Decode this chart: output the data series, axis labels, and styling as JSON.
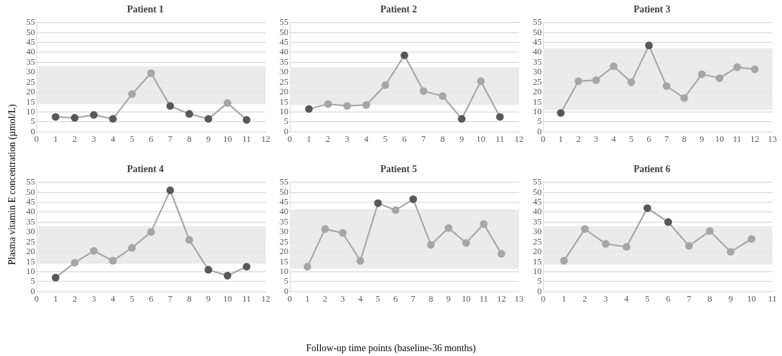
{
  "chart_data": [
    {
      "type": "line",
      "title": "Patient 1",
      "ylabel": "Plasma vitamin E concentration (µmol/L)",
      "x": [
        1,
        2,
        3,
        4,
        5,
        6,
        7,
        8,
        9,
        10,
        11
      ],
      "series": [
        {
          "color": "#a6a6a6",
          "values": [
            7.5,
            7,
            8.5,
            6.5,
            19,
            29.5,
            13,
            9,
            6.5,
            14.5,
            6
          ],
          "colors": [
            "#595959",
            "#595959",
            "#595959",
            "#595959",
            "#a6a6a6",
            "#a6a6a6",
            "#595959",
            "#595959",
            "#595959",
            "#a6a6a6",
            "#595959"
          ]
        }
      ],
      "xlim": [
        0,
        12
      ],
      "xticks": [
        0,
        1,
        2,
        3,
        4,
        5,
        6,
        7,
        8,
        9,
        10,
        11,
        12
      ],
      "ylim": [
        0,
        55
      ],
      "yticks": [
        0,
        5,
        10,
        15,
        20,
        25,
        30,
        35,
        40,
        45,
        50,
        55
      ],
      "grid": "y",
      "marker": "circle",
      "legend": false,
      "bands": [
        {
          "axis": "y",
          "from": 14,
          "to": 33,
          "color": "#e8e8e8"
        }
      ]
    },
    {
      "type": "line",
      "title": "Patient 2",
      "x": [
        1,
        2,
        3,
        4,
        5,
        6,
        7,
        8,
        9,
        10,
        11
      ],
      "series": [
        {
          "color": "#a6a6a6",
          "values": [
            11.5,
            14,
            13,
            13.5,
            23.5,
            38.5,
            20.5,
            18,
            6.5,
            25.5,
            7.5
          ],
          "colors": [
            "#595959",
            "#a6a6a6",
            "#a6a6a6",
            "#a6a6a6",
            "#a6a6a6",
            "#595959",
            "#a6a6a6",
            "#a6a6a6",
            "#595959",
            "#a6a6a6",
            "#595959"
          ]
        }
      ],
      "xlim": [
        0,
        12
      ],
      "xticks": [
        0,
        1,
        2,
        3,
        4,
        5,
        6,
        7,
        8,
        9,
        10,
        11,
        12
      ],
      "ylim": [
        0,
        55
      ],
      "yticks": [
        0,
        5,
        10,
        15,
        20,
        25,
        30,
        35,
        40,
        45,
        50,
        55
      ],
      "grid": "y",
      "marker": "circle",
      "legend": false,
      "bands": [
        {
          "axis": "y",
          "from": 13.5,
          "to": 32.5,
          "color": "#e8e8e8"
        }
      ]
    },
    {
      "type": "line",
      "title": "Patient 3",
      "x": [
        1,
        2,
        3,
        4,
        5,
        6,
        7,
        8,
        9,
        10,
        11,
        12
      ],
      "series": [
        {
          "color": "#a6a6a6",
          "values": [
            9.5,
            25.5,
            26,
            33,
            25,
            43.5,
            23,
            17,
            29,
            27,
            32.5,
            31.5
          ],
          "colors": [
            "#595959",
            "#a6a6a6",
            "#a6a6a6",
            "#a6a6a6",
            "#a6a6a6",
            "#595959",
            "#a6a6a6",
            "#a6a6a6",
            "#a6a6a6",
            "#a6a6a6",
            "#a6a6a6",
            "#a6a6a6"
          ]
        }
      ],
      "xlim": [
        0,
        13
      ],
      "xticks": [
        0,
        1,
        2,
        3,
        4,
        5,
        6,
        7,
        8,
        9,
        10,
        11,
        12,
        13
      ],
      "ylim": [
        0,
        55
      ],
      "yticks": [
        0,
        5,
        10,
        15,
        20,
        25,
        30,
        35,
        40,
        45,
        50,
        55
      ],
      "grid": "y",
      "marker": "circle",
      "legend": false,
      "bands": [
        {
          "axis": "y",
          "from": 11,
          "to": 42,
          "color": "#e8e8e8"
        }
      ]
    },
    {
      "type": "line",
      "title": "Patient 4",
      "x": [
        1,
        2,
        3,
        4,
        5,
        6,
        7,
        8,
        9,
        10,
        11
      ],
      "series": [
        {
          "color": "#a6a6a6",
          "values": [
            7,
            14.5,
            20.5,
            15.5,
            22,
            30,
            51,
            26,
            11,
            8,
            12.5
          ],
          "colors": [
            "#595959",
            "#a6a6a6",
            "#a6a6a6",
            "#a6a6a6",
            "#a6a6a6",
            "#a6a6a6",
            "#595959",
            "#a6a6a6",
            "#595959",
            "#595959",
            "#595959"
          ]
        }
      ],
      "xlim": [
        0,
        12
      ],
      "xticks": [
        0,
        1,
        2,
        3,
        4,
        5,
        6,
        7,
        8,
        9,
        10,
        11,
        12
      ],
      "ylim": [
        0,
        55
      ],
      "yticks": [
        0,
        5,
        10,
        15,
        20,
        25,
        30,
        35,
        40,
        45,
        50,
        55
      ],
      "grid": "y",
      "marker": "circle",
      "legend": false,
      "bands": [
        {
          "axis": "y",
          "from": 14,
          "to": 33,
          "color": "#e8e8e8"
        }
      ]
    },
    {
      "type": "line",
      "title": "Patient 5",
      "xlabel": "Follow-up time points (baseline-36 months)",
      "x": [
        1,
        2,
        3,
        4,
        5,
        6,
        7,
        8,
        9,
        10,
        11,
        12
      ],
      "series": [
        {
          "color": "#a6a6a6",
          "values": [
            12.5,
            31.5,
            29.5,
            15.5,
            44.5,
            41,
            46.5,
            23.5,
            32,
            24.5,
            34,
            19
          ],
          "colors": [
            "#a6a6a6",
            "#a6a6a6",
            "#a6a6a6",
            "#a6a6a6",
            "#595959",
            "#a6a6a6",
            "#595959",
            "#a6a6a6",
            "#a6a6a6",
            "#a6a6a6",
            "#a6a6a6",
            "#a6a6a6"
          ]
        }
      ],
      "xlim": [
        0,
        13
      ],
      "xticks": [
        0,
        1,
        2,
        3,
        4,
        5,
        6,
        7,
        8,
        9,
        10,
        11,
        12,
        13
      ],
      "ylim": [
        0,
        55
      ],
      "yticks": [
        0,
        5,
        10,
        15,
        20,
        25,
        30,
        35,
        40,
        45,
        50,
        55
      ],
      "grid": "y",
      "marker": "circle",
      "legend": false,
      "bands": [
        {
          "axis": "y",
          "from": 11.5,
          "to": 41.5,
          "color": "#e8e8e8"
        }
      ]
    },
    {
      "type": "line",
      "title": "Patient 6",
      "x": [
        1,
        2,
        3,
        4,
        5,
        6,
        7,
        8,
        9,
        10
      ],
      "series": [
        {
          "color": "#a6a6a6",
          "values": [
            15.5,
            31.5,
            24,
            22.5,
            42,
            35,
            23,
            30.5,
            20,
            26.5
          ],
          "colors": [
            "#a6a6a6",
            "#a6a6a6",
            "#a6a6a6",
            "#a6a6a6",
            "#595959",
            "#595959",
            "#a6a6a6",
            "#a6a6a6",
            "#a6a6a6",
            "#a6a6a6"
          ]
        }
      ],
      "xlim": [
        0,
        11
      ],
      "xticks": [
        0,
        1,
        2,
        3,
        4,
        5,
        6,
        7,
        8,
        9,
        10,
        11
      ],
      "ylim": [
        0,
        55
      ],
      "yticks": [
        0,
        5,
        10,
        15,
        20,
        25,
        30,
        35,
        40,
        45,
        50,
        55
      ],
      "grid": "y",
      "marker": "circle",
      "legend": false,
      "bands": [
        {
          "axis": "y",
          "from": 13.5,
          "to": 33,
          "color": "#e8e8e8"
        }
      ]
    }
  ]
}
